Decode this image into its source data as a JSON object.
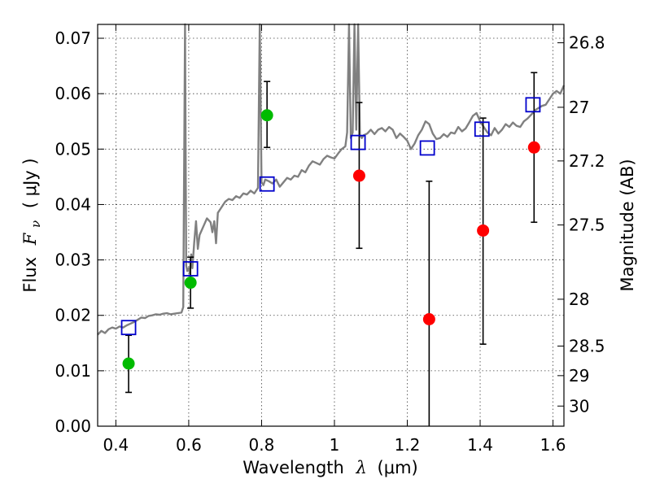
{
  "chart_data": {
    "type": "scatter",
    "xlabel": "Wavelength",
    "xlabel_symbol": "λ",
    "xlabel_unit": "(μm)",
    "ylabel": "Flux",
    "ylabel_symbol": "F",
    "ylabel_subscript": "ν",
    "ylabel_unit": "( μJy )",
    "y2label": "Magnitude (AB)",
    "xlim": [
      0.35,
      1.63
    ],
    "ylim": [
      0.0,
      0.0725
    ],
    "grid": true,
    "x_ticks": [
      {
        "value": 0.4,
        "label": "0.4"
      },
      {
        "value": 0.6,
        "label": "0.6"
      },
      {
        "value": 0.8,
        "label": "0.8"
      },
      {
        "value": 1.0,
        "label": "1"
      },
      {
        "value": 1.2,
        "label": "1.2"
      },
      {
        "value": 1.4,
        "label": "1.4"
      },
      {
        "value": 1.6,
        "label": "1.6"
      }
    ],
    "y_ticks": [
      {
        "value": 0.0,
        "label": "0.00"
      },
      {
        "value": 0.01,
        "label": "0.01"
      },
      {
        "value": 0.02,
        "label": "0.02"
      },
      {
        "value": 0.03,
        "label": "0.03"
      },
      {
        "value": 0.04,
        "label": "0.04"
      },
      {
        "value": 0.05,
        "label": "0.05"
      },
      {
        "value": 0.06,
        "label": "0.06"
      },
      {
        "value": 0.07,
        "label": "0.07"
      }
    ],
    "y2_ticks": [
      {
        "value": 26.8,
        "label": "26.8"
      },
      {
        "value": 27.0,
        "label": "27"
      },
      {
        "value": 27.2,
        "label": "27.2"
      },
      {
        "value": 27.5,
        "label": "27.5"
      },
      {
        "value": 28.0,
        "label": "28"
      },
      {
        "value": 28.5,
        "label": "28.5"
      },
      {
        "value": 29.0,
        "label": "29"
      },
      {
        "value": 30.0,
        "label": "30"
      }
    ],
    "colors": {
      "model": "#808080",
      "model_points": "#0000cc",
      "optical_points": "#00bb00",
      "nir_points": "#ff0000",
      "errorbar": "#000000"
    },
    "model_spectrum": {
      "x": [
        0.35,
        0.36,
        0.37,
        0.38,
        0.39,
        0.4,
        0.41,
        0.42,
        0.43,
        0.44,
        0.45,
        0.46,
        0.47,
        0.48,
        0.49,
        0.5,
        0.51,
        0.52,
        0.53,
        0.54,
        0.55,
        0.56,
        0.57,
        0.58,
        0.585,
        0.59,
        0.593,
        0.596,
        0.6,
        0.603,
        0.607,
        0.61,
        0.615,
        0.62,
        0.625,
        0.63,
        0.64,
        0.65,
        0.66,
        0.665,
        0.67,
        0.675,
        0.68,
        0.69,
        0.7,
        0.71,
        0.72,
        0.73,
        0.74,
        0.75,
        0.76,
        0.77,
        0.78,
        0.79,
        0.795,
        0.8,
        0.805,
        0.81,
        0.82,
        0.83,
        0.84,
        0.85,
        0.86,
        0.87,
        0.88,
        0.89,
        0.9,
        0.91,
        0.92,
        0.93,
        0.94,
        0.95,
        0.96,
        0.97,
        0.98,
        0.99,
        1.0,
        1.01,
        1.02,
        1.03,
        1.035,
        1.04,
        1.045,
        1.05,
        1.055,
        1.06,
        1.065,
        1.07,
        1.075,
        1.08,
        1.09,
        1.1,
        1.11,
        1.12,
        1.13,
        1.14,
        1.15,
        1.16,
        1.17,
        1.18,
        1.19,
        1.2,
        1.21,
        1.22,
        1.23,
        1.24,
        1.25,
        1.26,
        1.27,
        1.28,
        1.29,
        1.3,
        1.31,
        1.32,
        1.33,
        1.34,
        1.35,
        1.36,
        1.37,
        1.38,
        1.39,
        1.4,
        1.41,
        1.42,
        1.43,
        1.44,
        1.45,
        1.46,
        1.47,
        1.48,
        1.49,
        1.5,
        1.51,
        1.52,
        1.53,
        1.54,
        1.55,
        1.56,
        1.57,
        1.58,
        1.59,
        1.6,
        1.61,
        1.62,
        1.63
      ],
      "y": [
        0.0165,
        0.0172,
        0.0168,
        0.0175,
        0.0178,
        0.0176,
        0.018,
        0.0178,
        0.0182,
        0.0185,
        0.0188,
        0.0192,
        0.0196,
        0.0195,
        0.0199,
        0.02,
        0.0202,
        0.0201,
        0.0203,
        0.0204,
        0.0202,
        0.0203,
        0.0204,
        0.0205,
        0.0215,
        0.0725,
        0.029,
        0.028,
        0.0285,
        0.0275,
        0.031,
        0.0285,
        0.033,
        0.037,
        0.032,
        0.0345,
        0.036,
        0.0375,
        0.0368,
        0.035,
        0.037,
        0.033,
        0.0385,
        0.0395,
        0.0405,
        0.041,
        0.0408,
        0.0415,
        0.0412,
        0.042,
        0.0418,
        0.0425,
        0.042,
        0.043,
        0.0725,
        0.044,
        0.0435,
        0.0445,
        0.0442,
        0.0438,
        0.0445,
        0.0432,
        0.044,
        0.0448,
        0.0445,
        0.0452,
        0.045,
        0.0462,
        0.0458,
        0.047,
        0.0478,
        0.0475,
        0.0472,
        0.0482,
        0.0488,
        0.0485,
        0.0483,
        0.0492,
        0.05,
        0.0505,
        0.053,
        0.0725,
        0.052,
        0.053,
        0.0725,
        0.0535,
        0.0725,
        0.0525,
        0.052,
        0.0525,
        0.0528,
        0.0535,
        0.0527,
        0.0535,
        0.0538,
        0.0532,
        0.054,
        0.0535,
        0.052,
        0.0528,
        0.0522,
        0.0515,
        0.05,
        0.051,
        0.0525,
        0.0535,
        0.055,
        0.0545,
        0.0528,
        0.0518,
        0.052,
        0.0527,
        0.0522,
        0.053,
        0.0528,
        0.054,
        0.0532,
        0.0537,
        0.0548,
        0.056,
        0.0565,
        0.055,
        0.054,
        0.053,
        0.0525,
        0.0538,
        0.0528,
        0.0535,
        0.0545,
        0.054,
        0.0548,
        0.0542,
        0.054,
        0.055,
        0.0555,
        0.0562,
        0.057,
        0.0574,
        0.0578,
        0.058,
        0.059,
        0.06,
        0.0605,
        0.06,
        0.0615
      ]
    },
    "series": [
      {
        "marker": "square",
        "x": [
          0.435,
          0.605,
          0.815,
          1.065,
          1.255,
          1.405,
          1.545
        ],
        "y": [
          0.0178,
          0.0284,
          0.0437,
          0.0512,
          0.0502,
          0.0536,
          0.058
        ]
      },
      {
        "marker": "circle",
        "x": [
          0.435,
          0.605,
          0.815
        ],
        "y": [
          0.0113,
          0.0259,
          0.0561
        ],
        "yerr_low": [
          0.0061,
          0.0213,
          0.0503
        ],
        "yerr_high": [
          0.0164,
          0.0305,
          0.0622
        ]
      },
      {
        "marker": "circle",
        "x": [
          1.068,
          1.26,
          1.408,
          1.548
        ],
        "y": [
          0.0452,
          0.0193,
          0.0353,
          0.0503
        ],
        "yerr_low": [
          0.0321,
          0.0,
          0.0148,
          0.0368
        ],
        "yerr_high": [
          0.0584,
          0.0442,
          0.0556,
          0.0638
        ]
      }
    ]
  }
}
